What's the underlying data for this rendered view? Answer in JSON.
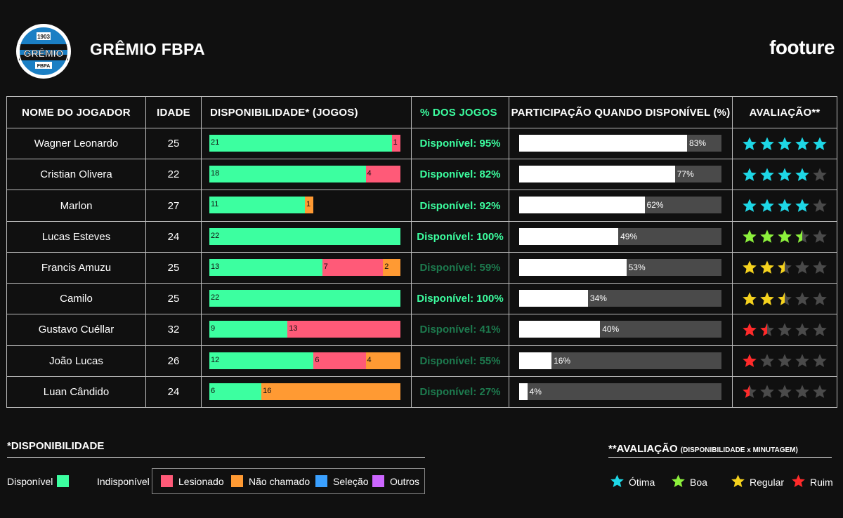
{
  "header": {
    "team_name": "GRÊMIO FBPA",
    "crest_year": "1903",
    "crest_name": "GRÊMIO",
    "crest_sub": "FBPA",
    "brand": "footure"
  },
  "table": {
    "headers": {
      "name": "NOME DO JOGADOR",
      "age": "IDADE",
      "availability": "DISPONIBILIDADE* (JOGOS)",
      "pct": "% DOS JOGOS",
      "participation": "PARTICIPAÇÃO QUANDO DISPONÍVEL (%)",
      "rating": "AVALIAÇÃO**"
    }
  },
  "colors": {
    "disponivel": "#3cffa0",
    "lesionado": "#ff5a78",
    "nao_chamado": "#ff9a33",
    "selecao": "#3aa0ff",
    "outros": "#cc66ff",
    "otima": "#1ed7e6",
    "boa": "#8cf03c",
    "regular": "#f5d21e",
    "ruim": "#ff2a2a",
    "empty_star": "#4a4a4a"
  },
  "chart_data": {
    "type": "table",
    "total_games": 22,
    "rows": [
      {
        "name": "Wagner Leonardo",
        "age": "25",
        "segments": [
          {
            "type": "disponivel",
            "value": 21
          },
          {
            "type": "lesionado",
            "value": 1
          }
        ],
        "pct_label": "Disponível: 95%",
        "pct": 95,
        "participation": 83,
        "participation_label": "83%",
        "rating": 5,
        "rating_level": "otima"
      },
      {
        "name": "Cristian Olivera",
        "age": "22",
        "segments": [
          {
            "type": "disponivel",
            "value": 18
          },
          {
            "type": "lesionado",
            "value": 4
          }
        ],
        "pct_label": "Disponível: 82%",
        "pct": 82,
        "participation": 77,
        "participation_label": "77%",
        "rating": 4,
        "rating_level": "otima"
      },
      {
        "name": "Marlon",
        "age": "27",
        "segments": [
          {
            "type": "disponivel",
            "value": 11
          },
          {
            "type": "nao_chamado",
            "value": 1
          }
        ],
        "pct_label": "Disponível: 92%",
        "pct": 92,
        "participation": 62,
        "participation_label": "62%",
        "rating": 4,
        "rating_level": "otima"
      },
      {
        "name": "Lucas Esteves",
        "age": "24",
        "segments": [
          {
            "type": "disponivel",
            "value": 22
          }
        ],
        "pct_label": "Disponível: 100%",
        "pct": 100,
        "participation": 49,
        "participation_label": "49%",
        "rating": 3.5,
        "rating_level": "boa"
      },
      {
        "name": "Francis Amuzu",
        "age": "25",
        "segments": [
          {
            "type": "disponivel",
            "value": 13
          },
          {
            "type": "lesionado",
            "value": 7
          },
          {
            "type": "nao_chamado",
            "value": 2
          }
        ],
        "pct_label": "Disponível: 59%",
        "pct": 59,
        "participation": 53,
        "participation_label": "53%",
        "rating": 2.5,
        "rating_level": "regular"
      },
      {
        "name": "Camilo",
        "age": "25",
        "segments": [
          {
            "type": "disponivel",
            "value": 22
          }
        ],
        "pct_label": "Disponível: 100%",
        "pct": 100,
        "participation": 34,
        "participation_label": "34%",
        "rating": 2.5,
        "rating_level": "regular"
      },
      {
        "name": "Gustavo Cuéllar",
        "age": "32",
        "segments": [
          {
            "type": "disponivel",
            "value": 9
          },
          {
            "type": "lesionado",
            "value": 13
          }
        ],
        "pct_label": "Disponível: 41%",
        "pct": 41,
        "participation": 40,
        "participation_label": "40%",
        "rating": 1.5,
        "rating_level": "ruim"
      },
      {
        "name": "João Lucas",
        "age": "26",
        "segments": [
          {
            "type": "disponivel",
            "value": 12
          },
          {
            "type": "lesionado",
            "value": 6
          },
          {
            "type": "nao_chamado",
            "value": 4
          }
        ],
        "pct_label": "Disponível: 55%",
        "pct": 55,
        "participation": 16,
        "participation_label": "16%",
        "rating": 1,
        "rating_level": "ruim"
      },
      {
        "name": "Luan Cândido",
        "age": "24",
        "segments": [
          {
            "type": "disponivel",
            "value": 6
          },
          {
            "type": "nao_chamado",
            "value": 16
          }
        ],
        "pct_label": "Disponível: 27%",
        "pct": 27,
        "participation": 4,
        "participation_label": "4%",
        "rating": 0.5,
        "rating_level": "ruim"
      }
    ]
  },
  "legend_availability": {
    "title": "*DISPONIBILIDADE",
    "disponivel": "Disponível",
    "indisponivel": "Indisponível",
    "lesionado": "Lesionado",
    "nao_chamado": "Não chamado",
    "selecao": "Seleção",
    "outros": "Outros"
  },
  "legend_rating": {
    "title": "**AVALIAÇÃO",
    "subtitle": "(DISPONIBILIDADE x MINUTAGEM)",
    "otima": "Ótima",
    "boa": "Boa",
    "regular": "Regular",
    "ruim": "Ruim"
  }
}
